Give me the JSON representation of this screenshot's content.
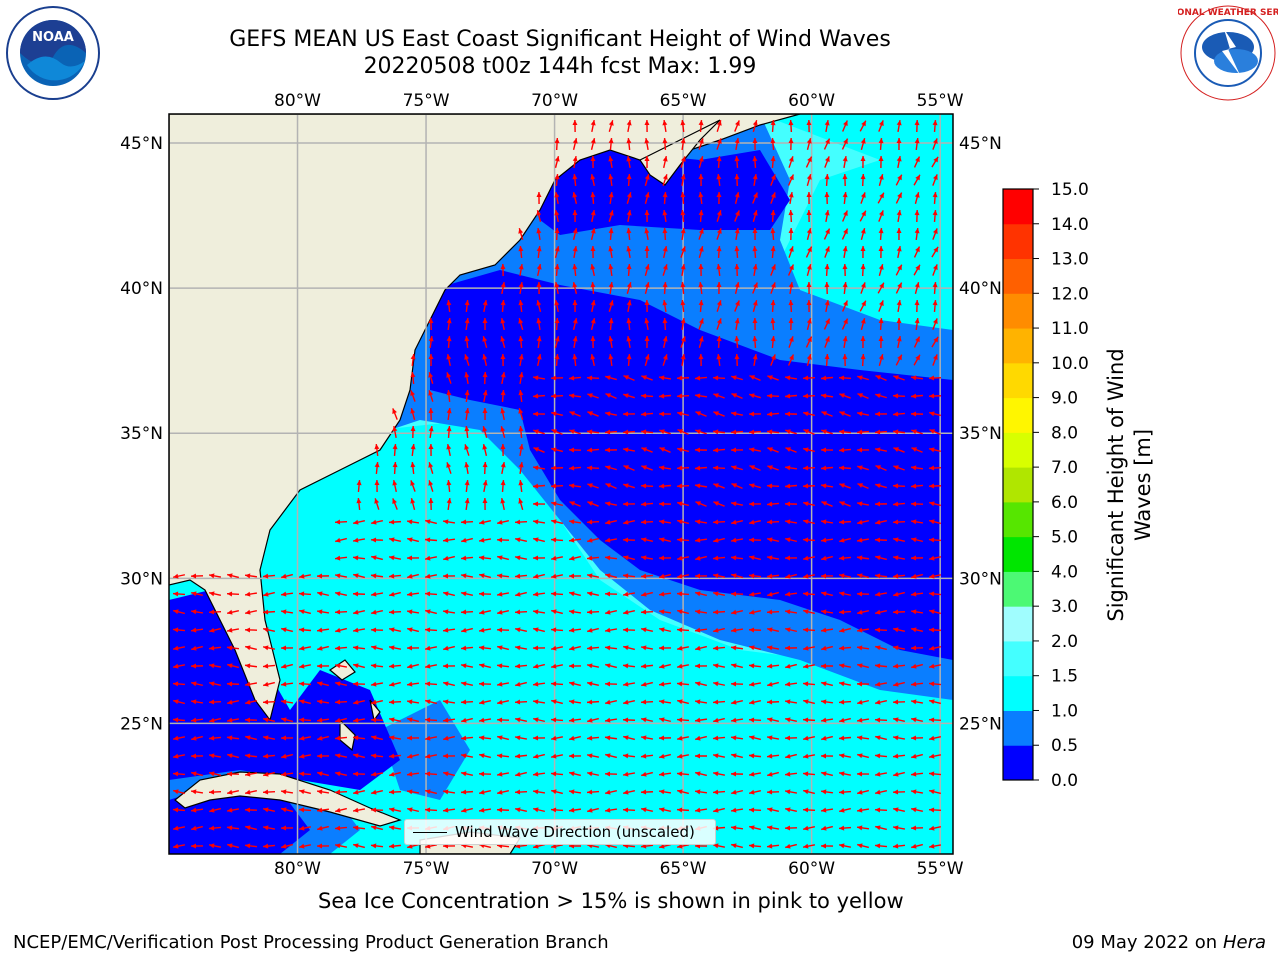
{
  "header": {
    "title_line1": "GEFS MEAN US East Coast Significant Height of Wind Waves",
    "title_line2": "20220508 t00z 144h fcst   Max: 1.99"
  },
  "map": {
    "lon_labels": [
      "80°W",
      "75°W",
      "70°W",
      "65°W",
      "60°W",
      "55°W"
    ],
    "lat_labels": [
      "45°N",
      "40°N",
      "35°N",
      "30°N",
      "25°N"
    ],
    "lon_range": [
      -85,
      -54.5
    ],
    "lat_range": [
      20.5,
      46
    ],
    "colors": {
      "land": "#efeedc",
      "coast": "#000000",
      "grid": "#b3b3b3",
      "arrow": "#ff0000",
      "band_0_0_5": "#0000ff",
      "band_0_5_1_0": "#0a7eff",
      "band_1_0_1_5": "#00ffff",
      "band_1_5_2_0": "#44ffff"
    },
    "legend_label": "Wind Wave Direction (unscaled)"
  },
  "colorbar": {
    "label_line1": "Significant Height of Wind",
    "label_line2": "Waves [m]",
    "ticks": [
      "0.0",
      "0.5",
      "1.0",
      "1.5",
      "2.0",
      "3.0",
      "4.0",
      "5.0",
      "6.0",
      "7.0",
      "8.0",
      "9.0",
      "10.0",
      "11.0",
      "12.0",
      "13.0",
      "14.0",
      "15.0"
    ],
    "colors": [
      "#0000ff",
      "#0a7eff",
      "#00ffff",
      "#44ffff",
      "#a0fdfe",
      "#4cf974",
      "#00e600",
      "#56e600",
      "#b0e600",
      "#d8ff00",
      "#fff600",
      "#ffd900",
      "#ffb300",
      "#ff8c00",
      "#ff6000",
      "#ff3300",
      "#ff0000"
    ]
  },
  "footer": {
    "note": "Sea Ice Concentration > 15% is shown in pink to yellow",
    "credit": "NCEP/EMC/Verification Post Processing Product Generation Branch",
    "date": "09 May 2022 on",
    "host": "Hera"
  },
  "logos": {
    "left_text": "NOAA",
    "right_text": "NATIONAL WEATHER SERVICE"
  }
}
